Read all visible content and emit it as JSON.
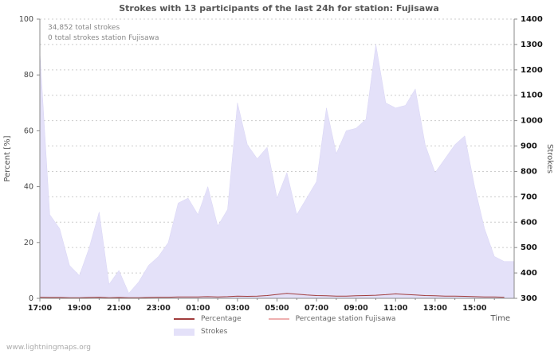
{
  "watermark": "www.lightningmaps.org",
  "legend": {
    "items": [
      {
        "label": "Percentage",
        "swatch": "line",
        "color": "#a03c3c"
      },
      {
        "label": "Percentage station Fujisawa",
        "swatch": "line",
        "color": "#eeb0b0"
      },
      {
        "label": "Strokes",
        "swatch": "area",
        "color": "#e4e1f9"
      }
    ]
  },
  "chart_data": {
    "type": "area",
    "title": "Strokes with 13 participants of the last 24h for station: Fujisawa",
    "xlabel": "Time",
    "ylabel_left": "Percent  [%]",
    "ylabel_right": "Strokes",
    "annotations": [
      "34,852 total strokes",
      "0 total strokes station Fujisawa"
    ],
    "grid": true,
    "legend_position": "bottom",
    "x_ticks": [
      "17:00",
      "19:00",
      "21:00",
      "23:00",
      "01:00",
      "03:00",
      "05:00",
      "07:00",
      "09:00",
      "11:00",
      "13:00",
      "15:00"
    ],
    "y_left_ticks": [
      0,
      20,
      40,
      60,
      80,
      100
    ],
    "y_right_ticks": [
      300,
      400,
      500,
      600,
      700,
      800,
      900,
      1000,
      1100,
      1200,
      1300,
      1400
    ],
    "y_left_range": [
      0,
      100
    ],
    "y_right_range": [
      300,
      1400
    ],
    "x": [
      "17:00",
      "17:30",
      "18:00",
      "18:30",
      "19:00",
      "19:30",
      "20:00",
      "20:30",
      "21:00",
      "21:30",
      "22:00",
      "22:30",
      "23:00",
      "23:30",
      "00:00",
      "00:30",
      "01:00",
      "01:30",
      "02:00",
      "02:30",
      "03:00",
      "03:30",
      "04:00",
      "04:30",
      "05:00",
      "05:30",
      "06:00",
      "06:30",
      "07:00",
      "07:30",
      "08:00",
      "08:30",
      "09:00",
      "09:30",
      "10:00",
      "10:30",
      "11:00",
      "11:30",
      "12:00",
      "12:30",
      "13:00",
      "13:30",
      "14:00",
      "14:30",
      "15:00",
      "15:30",
      "16:00",
      "16:30"
    ],
    "series": [
      {
        "name": "Strokes",
        "type": "area",
        "axis": "right",
        "color": "#e4e1f9",
        "stroke": "#d8d4f5",
        "values": [
          1270,
          630,
          575,
          430,
          390,
          500,
          640,
          355,
          410,
          320,
          365,
          430,
          465,
          520,
          675,
          695,
          630,
          740,
          585,
          650,
          1070,
          905,
          850,
          895,
          695,
          795,
          630,
          695,
          760,
          1050,
          870,
          960,
          970,
          1005,
          1300,
          1070,
          1050,
          1060,
          1125,
          905,
          795,
          850,
          905,
          940,
          740,
          575,
          465,
          445
        ]
      },
      {
        "name": "Percentage",
        "type": "line",
        "axis": "left",
        "color": "#a03c3c",
        "values": [
          0.4,
          0.3,
          0.3,
          0.2,
          0.2,
          0.3,
          0.4,
          0.2,
          0.3,
          0.2,
          0.2,
          0.3,
          0.4,
          0.4,
          0.5,
          0.5,
          0.5,
          0.6,
          0.5,
          0.6,
          0.8,
          0.7,
          0.8,
          1.0,
          1.4,
          1.8,
          1.5,
          1.2,
          1.0,
          0.9,
          0.8,
          0.8,
          0.9,
          1.0,
          1.1,
          1.3,
          1.6,
          1.4,
          1.2,
          1.0,
          0.9,
          0.8,
          0.8,
          0.7,
          0.6,
          0.5,
          0.5,
          0.4
        ]
      },
      {
        "name": "Percentage station Fujisawa",
        "type": "line",
        "axis": "left",
        "color": "#eeb0b0",
        "values": [
          0,
          0,
          0,
          0,
          0,
          0,
          0,
          0,
          0,
          0,
          0,
          0,
          0,
          0,
          0,
          0,
          0,
          0,
          0,
          0,
          0,
          0,
          0,
          0,
          0,
          0,
          0,
          0,
          0,
          0,
          0,
          0,
          0,
          0,
          0,
          0,
          0,
          0,
          0,
          0,
          0,
          0,
          0,
          0,
          0,
          0,
          0,
          0
        ]
      }
    ]
  }
}
